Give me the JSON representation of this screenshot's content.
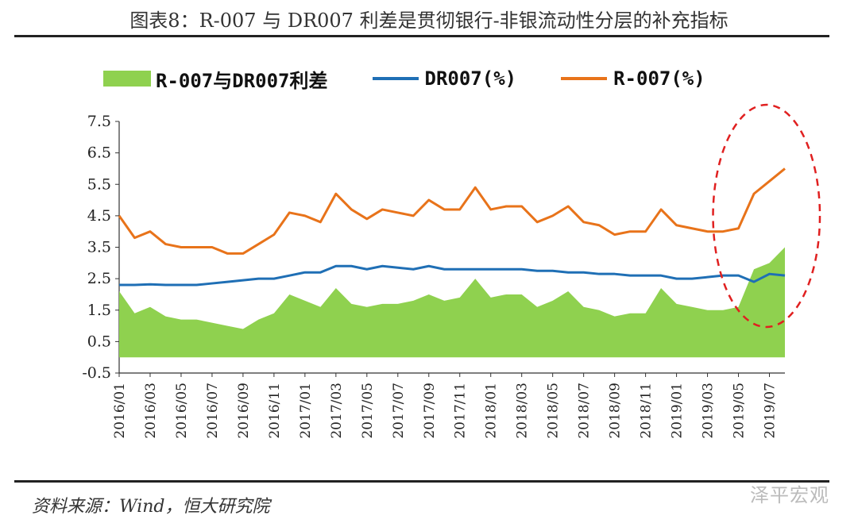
{
  "header": {
    "title": "图表8：R-007 与 DR007 利差是贯彻银行-非银流动性分层的补充指标"
  },
  "footer": {
    "source": "资料来源：Wind，恒大研究院",
    "watermark": "泽平宏观"
  },
  "colors": {
    "spread": "#8fd14f",
    "dr007": "#1f6fb5",
    "r007": "#e8731a",
    "annotation": "#e02020"
  },
  "chart_data": {
    "type": "line",
    "title": "",
    "xlabel": "",
    "ylabel": "",
    "ylim": [
      -0.5,
      7.5
    ],
    "y_ticks": [
      "7.5",
      "6.5",
      "5.5",
      "4.5",
      "3.5",
      "2.5",
      "1.5",
      "0.5",
      "-0.5"
    ],
    "x_ticks": [
      "2016/01",
      "2016/03",
      "2016/05",
      "2016/07",
      "2016/09",
      "2016/11",
      "2017/01",
      "2017/03",
      "2017/05",
      "2017/07",
      "2017/09",
      "2017/11",
      "2018/01",
      "2018/03",
      "2018/05",
      "2018/07",
      "2018/09",
      "2018/11",
      "2019/01",
      "2019/03",
      "2019/05",
      "2019/07"
    ],
    "legend_position": "top",
    "annotation": "red dashed ellipse highlighting 2019/05-2019/08",
    "x": [
      "2016/01",
      "2016/02",
      "2016/03",
      "2016/04",
      "2016/05",
      "2016/06",
      "2016/07",
      "2016/08",
      "2016/09",
      "2016/10",
      "2016/11",
      "2016/12",
      "2017/01",
      "2017/02",
      "2017/03",
      "2017/04",
      "2017/05",
      "2017/06",
      "2017/07",
      "2017/08",
      "2017/09",
      "2017/10",
      "2017/11",
      "2017/12",
      "2018/01",
      "2018/02",
      "2018/03",
      "2018/04",
      "2018/05",
      "2018/06",
      "2018/07",
      "2018/08",
      "2018/09",
      "2018/10",
      "2018/11",
      "2018/12",
      "2019/01",
      "2019/02",
      "2019/03",
      "2019/04",
      "2019/05",
      "2019/06",
      "2019/07",
      "2019/08"
    ],
    "series": [
      {
        "name": "R-007与DR007利差",
        "style": "area",
        "values": [
          2.1,
          1.4,
          1.6,
          1.3,
          1.2,
          1.2,
          1.1,
          1.0,
          0.9,
          1.2,
          1.4,
          2.0,
          1.8,
          1.6,
          2.2,
          1.7,
          1.6,
          1.7,
          1.7,
          1.8,
          2.0,
          1.8,
          1.9,
          2.5,
          1.9,
          2.0,
          2.0,
          1.6,
          1.8,
          2.1,
          1.6,
          1.5,
          1.3,
          1.4,
          1.4,
          2.2,
          1.7,
          1.6,
          1.5,
          1.5,
          1.6,
          2.8,
          3.0,
          3.5
        ]
      },
      {
        "name": "DR007(%)",
        "style": "line",
        "values": [
          2.3,
          2.3,
          2.32,
          2.3,
          2.3,
          2.3,
          2.35,
          2.4,
          2.45,
          2.5,
          2.5,
          2.6,
          2.7,
          2.7,
          2.9,
          2.9,
          2.8,
          2.9,
          2.85,
          2.8,
          2.9,
          2.8,
          2.8,
          2.8,
          2.8,
          2.8,
          2.8,
          2.75,
          2.75,
          2.7,
          2.7,
          2.65,
          2.65,
          2.6,
          2.6,
          2.6,
          2.5,
          2.5,
          2.55,
          2.6,
          2.6,
          2.4,
          2.65,
          2.6
        ]
      },
      {
        "name": "R-007(%)",
        "style": "line",
        "values": [
          4.5,
          3.8,
          4.0,
          3.6,
          3.5,
          3.5,
          3.5,
          3.3,
          3.3,
          3.6,
          3.9,
          4.6,
          4.5,
          4.3,
          5.2,
          4.7,
          4.4,
          4.7,
          4.6,
          4.5,
          5.0,
          4.7,
          4.7,
          5.4,
          4.7,
          4.8,
          4.8,
          4.3,
          4.5,
          4.8,
          4.3,
          4.2,
          3.9,
          4.0,
          4.0,
          4.7,
          4.2,
          4.1,
          4.0,
          4.0,
          4.1,
          5.2,
          5.6,
          6.0
        ]
      }
    ]
  }
}
